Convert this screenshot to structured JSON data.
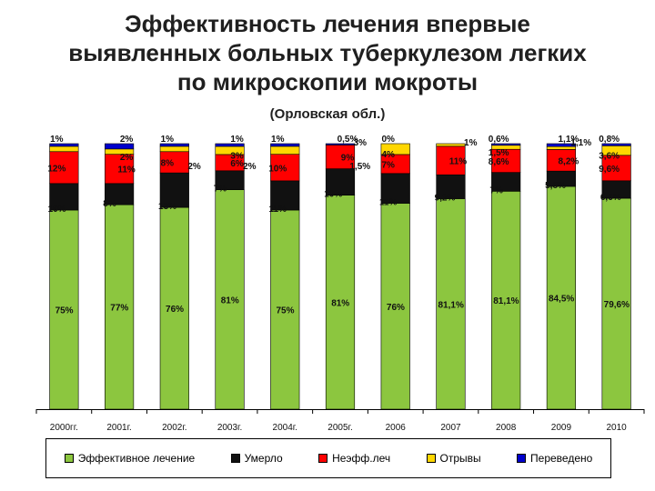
{
  "title_lines": [
    "Эффективность лечения впервые",
    "выявленных больных туберкулезом легких",
    "по микроскопии мокроты"
  ],
  "subtitle": "(Орловская обл.)",
  "chart_data": {
    "type": "bar",
    "stacked": true,
    "percent": true,
    "categories": [
      "2000гг.",
      "2001г.",
      "2002г.",
      "2003г.",
      "2004г.",
      "2005г.",
      "2006",
      "2007",
      "2008",
      "2009",
      "2010"
    ],
    "ylim": [
      0,
      100
    ],
    "grid": false,
    "legend_position": "bottom",
    "series": [
      {
        "name": "Эффективное лечение",
        "color": "#8cc63f",
        "values": [
          75,
          77,
          76,
          81,
          75,
          81,
          76,
          81.1,
          81.1,
          84.5,
          79.6
        ],
        "labels": [
          "75%",
          "77%",
          "76%",
          "81%",
          "75%",
          "81%",
          "76%",
          "81,1%",
          "81,1%",
          "84,5%",
          "79,6%"
        ]
      },
      {
        "name": "Умерло",
        "color": "#111111",
        "values": [
          10,
          8,
          13,
          7,
          11,
          10,
          11,
          9.2,
          7,
          5.8,
          6.6
        ],
        "labels": [
          "10%",
          "8%",
          "13%",
          "7%",
          "11%",
          "10%",
          "11%",
          "9,2%",
          "7%",
          "5,8%",
          "6,6%"
        ]
      },
      {
        "name": "Неэфф.леч",
        "color": "#ff0000",
        "values": [
          12,
          11,
          8,
          6,
          10,
          9,
          7,
          11,
          8.6,
          8.2,
          9.6
        ],
        "labels": [
          "12%",
          "11%",
          "8%",
          "6%",
          "10%",
          "9%",
          "7%",
          "11%",
          "8,6%",
          "8,2%",
          "9,6%"
        ]
      },
      {
        "name": "Отрывы",
        "color": "#ffd700",
        "values": [
          2,
          2,
          2,
          3,
          3,
          0,
          4,
          1,
          1.5,
          1.1,
          3.6
        ],
        "labels": [
          "",
          "2%",
          "",
          "3%",
          "",
          "",
          "4%",
          "",
          "1,5%",
          "",
          "3,6%"
        ]
      },
      {
        "name": "Переведено",
        "color": "#0000cc",
        "values": [
          1,
          2,
          1,
          1,
          1,
          0.5,
          0,
          0,
          0.6,
          1.1,
          0.8
        ],
        "labels": [
          "1%",
          "2%",
          "1%",
          "1%",
          "1%",
          "0,5%",
          "0%",
          "",
          "0,6%",
          "1,1%",
          "0,8%"
        ]
      }
    ],
    "extra_labels": [
      {
        "index": 2,
        "text": "2%",
        "after_series": 2
      },
      {
        "index": 3,
        "text": "2%",
        "after_series": 3
      },
      {
        "index": 5,
        "text": "3%",
        "after_series": 4
      },
      {
        "index": 5,
        "text": "1,5%",
        "after_series": 2
      },
      {
        "index": 7,
        "text": "1%",
        "after_series": 4
      },
      {
        "index": 9,
        "text": "1,1%",
        "after_series": 4
      }
    ]
  }
}
